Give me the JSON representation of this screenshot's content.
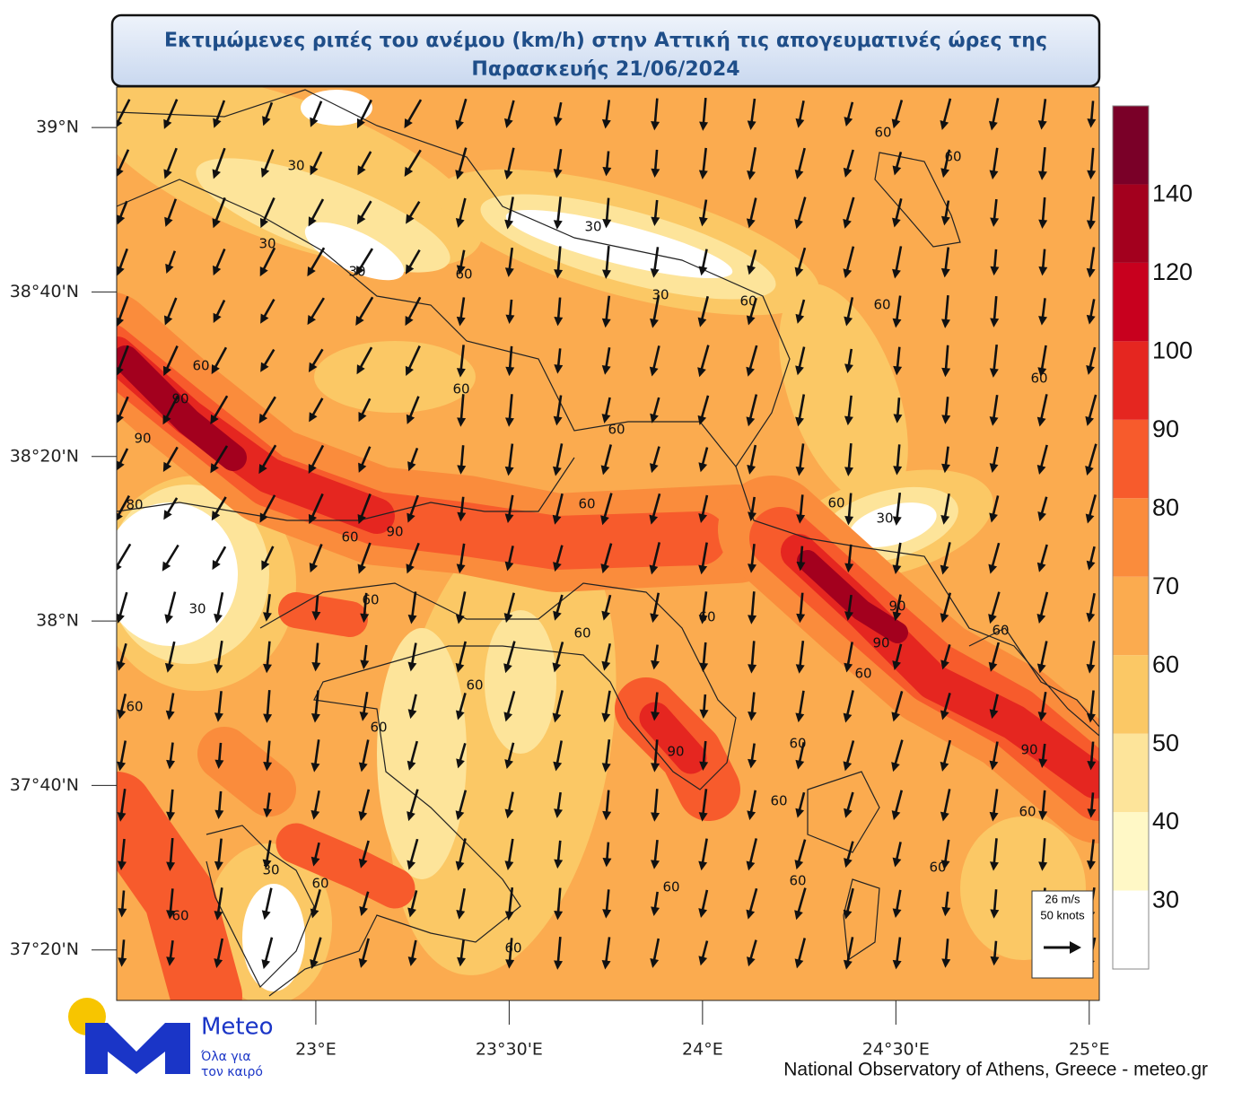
{
  "title": [
    "Εκτιμώμενες ριπές του ανέμου (km/h) στην Αττική τις απογευματινές ώρες της",
    "Παρασκευής 21/06/2024"
  ],
  "map": {
    "xlim": [
      22.485,
      25.026
    ],
    "ylim": [
      37.231,
      39.082
    ],
    "yticks": [
      {
        "value": 39,
        "label": "39°N"
      },
      {
        "value": 38.6667,
        "label": "38°40'N"
      },
      {
        "value": 38.3333,
        "label": "38°20'N"
      },
      {
        "value": 38,
        "label": "38°N"
      },
      {
        "value": 37.6667,
        "label": "37°40'N"
      },
      {
        "value": 37.3333,
        "label": "37°20'N"
      }
    ],
    "xticks": [
      {
        "value": 23,
        "label": "23°E"
      },
      {
        "value": 23.5,
        "label": "23°30'E"
      },
      {
        "value": 24,
        "label": "24°E"
      },
      {
        "value": 24.5,
        "label": "24°30'E"
      },
      {
        "value": 25,
        "label": "25°E"
      }
    ],
    "contour_labels": [
      30,
      30,
      30,
      30,
      30,
      60,
      60,
      60,
      60,
      60,
      60,
      90,
      90,
      60,
      60,
      60,
      80,
      60,
      90,
      60,
      60,
      30,
      60,
      30,
      60,
      90,
      90,
      60,
      60,
      60,
      60,
      60,
      60,
      90,
      60,
      90,
      60,
      60,
      30,
      60,
      60,
      60,
      60,
      60,
      60
    ]
  },
  "colorbar": {
    "levels": [
      30,
      40,
      50,
      60,
      70,
      80,
      90,
      100,
      120,
      140
    ],
    "colors": [
      "#ffffff",
      "#fff8c6",
      "#fde49a",
      "#fbc865",
      "#fbab4f",
      "#fa8c3c",
      "#f75b2c",
      "#e52620",
      "#c8001e",
      "#a3001e",
      "#7a0028"
    ]
  },
  "reference_vector": {
    "speed": "26 m/s",
    "knots": "50 knots"
  },
  "logo": {
    "name": "Meteo",
    "tagline": [
      "Όλα για",
      "τον καιρό"
    ]
  },
  "credit": "National Observatory of Athens, Greece - meteo.gr"
}
